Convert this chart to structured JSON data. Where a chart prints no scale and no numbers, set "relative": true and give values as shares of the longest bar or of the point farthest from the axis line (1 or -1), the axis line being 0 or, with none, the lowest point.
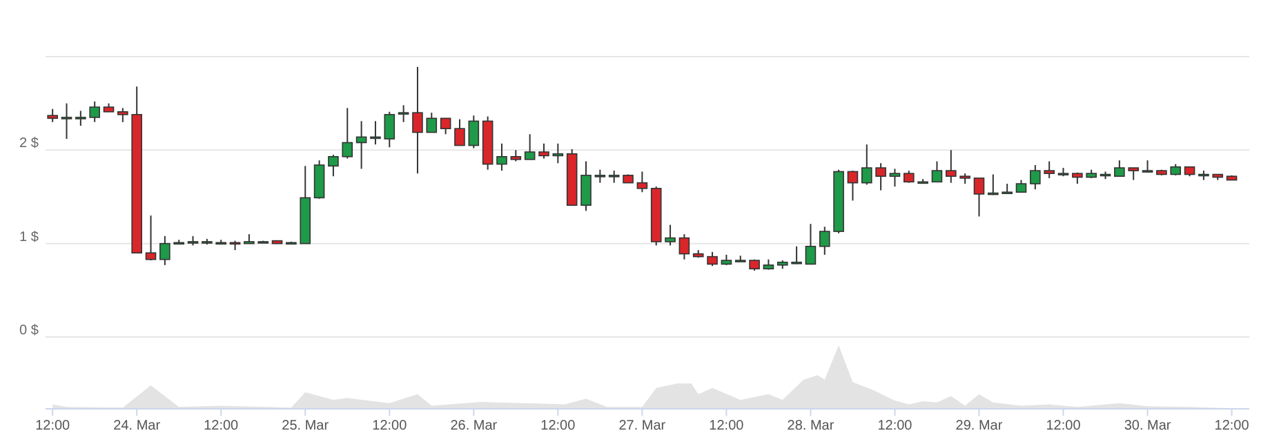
{
  "chart_data": [
    {
      "type": "candlestick",
      "ylim": [
        0,
        3
      ],
      "yticks": [
        {
          "value": 0,
          "label": "0 $"
        },
        {
          "value": 1,
          "label": "1 $"
        },
        {
          "value": 2,
          "label": "2 $"
        },
        {
          "value": 3,
          "label": null
        }
      ],
      "grid": "y",
      "tick_labels": "y",
      "xlim": [
        "--03-23T11:00",
        "--03-30T14:30"
      ],
      "x": [
        "--03-23T12:00",
        "--03-23T14:00",
        "--03-23T16:00",
        "--03-23T18:00",
        "--03-23T20:00",
        "--03-23T22:00",
        "--03-24T00:00",
        "--03-24T02:00",
        "--03-24T04:00",
        "--03-24T06:00",
        "--03-24T08:00",
        "--03-24T10:00",
        "--03-24T12:00",
        "--03-24T14:00",
        "--03-24T16:00",
        "--03-24T18:00",
        "--03-24T20:00",
        "--03-24T22:00",
        "--03-25T00:00",
        "--03-25T02:00",
        "--03-25T04:00",
        "--03-25T06:00",
        "--03-25T08:00",
        "--03-25T10:00",
        "--03-25T12:00",
        "--03-25T14:00",
        "--03-25T16:00",
        "--03-25T18:00",
        "--03-25T20:00",
        "--03-25T22:00",
        "--03-26T00:00",
        "--03-26T02:00",
        "--03-26T04:00",
        "--03-26T06:00",
        "--03-26T08:00",
        "--03-26T10:00",
        "--03-26T12:00",
        "--03-26T14:00",
        "--03-26T16:00",
        "--03-26T18:00",
        "--03-26T20:00",
        "--03-26T22:00",
        "--03-27T00:00",
        "--03-27T02:00",
        "--03-27T04:00",
        "--03-27T06:00",
        "--03-27T08:00",
        "--03-27T10:00",
        "--03-27T12:00",
        "--03-27T14:00",
        "--03-27T16:00",
        "--03-27T18:00",
        "--03-27T20:00",
        "--03-27T22:00",
        "--03-28T00:00",
        "--03-28T02:00",
        "--03-28T04:00",
        "--03-28T06:00",
        "--03-28T08:00",
        "--03-28T10:00",
        "--03-28T12:00",
        "--03-28T14:00",
        "--03-28T16:00",
        "--03-28T18:00",
        "--03-28T20:00",
        "--03-28T22:00",
        "--03-29T00:00",
        "--03-29T02:00",
        "--03-29T04:00",
        "--03-29T06:00",
        "--03-29T08:00",
        "--03-29T10:00",
        "--03-29T12:00",
        "--03-29T14:00",
        "--03-29T16:00",
        "--03-29T18:00",
        "--03-29T20:00",
        "--03-29T22:00",
        "--03-30T00:00",
        "--03-30T02:00",
        "--03-30T04:00",
        "--03-30T06:00",
        "--03-30T08:00",
        "--03-30T10:00",
        "--03-30T12:00"
      ],
      "ohlc": [
        [
          2.37,
          2.44,
          2.3,
          2.34
        ],
        [
          2.35,
          2.5,
          2.12,
          2.35
        ],
        [
          2.35,
          2.42,
          2.26,
          2.35
        ],
        [
          2.35,
          2.52,
          2.3,
          2.46
        ],
        [
          2.46,
          2.5,
          2.41,
          2.41
        ],
        [
          2.41,
          2.45,
          2.3,
          2.38
        ],
        [
          2.38,
          2.68,
          0.9,
          0.9
        ],
        [
          0.9,
          1.3,
          0.82,
          0.83
        ],
        [
          0.83,
          1.08,
          0.77,
          1.0
        ],
        [
          1.0,
          1.04,
          0.99,
          1.01
        ],
        [
          1.01,
          1.08,
          0.98,
          1.02
        ],
        [
          1.02,
          1.05,
          0.99,
          1.02
        ],
        [
          1.01,
          1.04,
          1.0,
          1.01
        ],
        [
          1.01,
          1.03,
          0.93,
          1.0
        ],
        [
          1.0,
          1.1,
          1.0,
          1.02
        ],
        [
          1.02,
          1.03,
          1.01,
          1.02
        ],
        [
          1.03,
          1.03,
          1.0,
          1.0
        ],
        [
          1.0,
          1.02,
          0.99,
          1.01
        ],
        [
          1.0,
          1.83,
          1.0,
          1.49
        ],
        [
          1.49,
          1.89,
          1.48,
          1.84
        ],
        [
          1.83,
          1.95,
          1.72,
          1.93
        ],
        [
          1.93,
          2.45,
          1.91,
          2.08
        ],
        [
          2.08,
          2.31,
          1.8,
          2.14
        ],
        [
          2.13,
          2.31,
          2.06,
          2.14
        ],
        [
          2.12,
          2.41,
          2.03,
          2.38
        ],
        [
          2.39,
          2.48,
          2.3,
          2.4
        ],
        [
          2.4,
          2.89,
          1.75,
          2.19
        ],
        [
          2.19,
          2.4,
          2.19,
          2.34
        ],
        [
          2.34,
          2.34,
          2.17,
          2.23
        ],
        [
          2.23,
          2.33,
          2.05,
          2.05
        ],
        [
          2.05,
          2.37,
          2.02,
          2.31
        ],
        [
          2.31,
          2.36,
          1.79,
          1.85
        ],
        [
          1.85,
          2.07,
          1.78,
          1.93
        ],
        [
          1.93,
          2.0,
          1.88,
          1.9
        ],
        [
          1.9,
          2.17,
          1.9,
          1.98
        ],
        [
          1.98,
          2.07,
          1.91,
          1.94
        ],
        [
          1.94,
          2.07,
          1.86,
          1.96
        ],
        [
          1.96,
          2.01,
          1.41,
          1.41
        ],
        [
          1.41,
          1.88,
          1.35,
          1.73
        ],
        [
          1.73,
          1.79,
          1.65,
          1.73
        ],
        [
          1.73,
          1.78,
          1.65,
          1.73
        ],
        [
          1.73,
          1.74,
          1.65,
          1.65
        ],
        [
          1.65,
          1.77,
          1.55,
          1.59
        ],
        [
          1.59,
          1.61,
          0.98,
          1.02
        ],
        [
          1.02,
          1.2,
          0.98,
          1.06
        ],
        [
          1.06,
          1.1,
          0.83,
          0.89
        ],
        [
          0.89,
          0.93,
          0.85,
          0.86
        ],
        [
          0.86,
          0.91,
          0.76,
          0.78
        ],
        [
          0.78,
          0.88,
          0.77,
          0.82
        ],
        [
          0.82,
          0.87,
          0.81,
          0.82
        ],
        [
          0.82,
          0.83,
          0.71,
          0.73
        ],
        [
          0.73,
          0.83,
          0.72,
          0.77
        ],
        [
          0.77,
          0.82,
          0.73,
          0.8
        ],
        [
          0.8,
          0.97,
          0.78,
          0.8
        ],
        [
          0.78,
          1.21,
          0.78,
          0.97
        ],
        [
          0.97,
          1.18,
          0.88,
          1.13
        ],
        [
          1.13,
          1.79,
          1.11,
          1.77
        ],
        [
          1.77,
          1.78,
          1.46,
          1.65
        ],
        [
          1.65,
          2.06,
          1.63,
          1.81
        ],
        [
          1.81,
          1.86,
          1.57,
          1.72
        ],
        [
          1.72,
          1.8,
          1.61,
          1.75
        ],
        [
          1.75,
          1.78,
          1.65,
          1.66
        ],
        [
          1.66,
          1.69,
          1.64,
          1.66
        ],
        [
          1.66,
          1.88,
          1.66,
          1.78
        ],
        [
          1.78,
          2.0,
          1.65,
          1.72
        ],
        [
          1.72,
          1.75,
          1.64,
          1.7
        ],
        [
          1.7,
          1.7,
          1.29,
          1.53
        ],
        [
          1.53,
          1.74,
          1.52,
          1.54
        ],
        [
          1.54,
          1.64,
          1.54,
          1.55
        ],
        [
          1.55,
          1.68,
          1.55,
          1.64
        ],
        [
          1.64,
          1.84,
          1.58,
          1.78
        ],
        [
          1.78,
          1.88,
          1.7,
          1.75
        ],
        [
          1.75,
          1.81,
          1.72,
          1.75
        ],
        [
          1.75,
          1.76,
          1.64,
          1.71
        ],
        [
          1.71,
          1.79,
          1.7,
          1.75
        ],
        [
          1.74,
          1.77,
          1.69,
          1.74
        ],
        [
          1.72,
          1.89,
          1.72,
          1.81
        ],
        [
          1.81,
          1.81,
          1.68,
          1.78
        ],
        [
          1.78,
          1.89,
          1.76,
          1.78
        ],
        [
          1.78,
          1.79,
          1.73,
          1.74
        ],
        [
          1.74,
          1.85,
          1.73,
          1.82
        ],
        [
          1.82,
          1.82,
          1.72,
          1.74
        ],
        [
          1.74,
          1.78,
          1.68,
          1.74
        ],
        [
          1.74,
          1.74,
          1.68,
          1.71
        ],
        [
          1.72,
          1.73,
          1.68,
          1.68
        ]
      ],
      "colors": [
        "#d9262a",
        "#1f9a48",
        "#1f9a48",
        "#1f9a48",
        "#d9262a",
        "#d9262a",
        "#d9262a",
        "#d9262a",
        "#1f9a48",
        "#1f9a48",
        "#1f9a48",
        "#1f9a48",
        "#1f9a48",
        "#d9262a",
        "#1f9a48",
        "#1f9a48",
        "#d9262a",
        "#1f9a48",
        "#1f9a48",
        "#1f9a48",
        "#1f9a48",
        "#1f9a48",
        "#1f9a48",
        "#1f9a48",
        "#1f9a48",
        "#1f9a48",
        "#d9262a",
        "#1f9a48",
        "#d9262a",
        "#d9262a",
        "#1f9a48",
        "#d9262a",
        "#1f9a48",
        "#d9262a",
        "#1f9a48",
        "#d9262a",
        "#1f9a48",
        "#d9262a",
        "#1f9a48",
        "#1f9a48",
        "#1f9a48",
        "#d9262a",
        "#d9262a",
        "#d9262a",
        "#1f9a48",
        "#d9262a",
        "#d9262a",
        "#d9262a",
        "#1f9a48",
        "#1f9a48",
        "#d9262a",
        "#1f9a48",
        "#1f9a48",
        "#1f9a48",
        "#1f9a48",
        "#1f9a48",
        "#1f9a48",
        "#d9262a",
        "#1f9a48",
        "#d9262a",
        "#1f9a48",
        "#d9262a",
        "#1f9a48",
        "#1f9a48",
        "#d9262a",
        "#d9262a",
        "#d9262a",
        "#1f9a48",
        "#1f9a48",
        "#1f9a48",
        "#1f9a48",
        "#d9262a",
        "#1f9a48",
        "#d9262a",
        "#1f9a48",
        "#1f9a48",
        "#1f9a48",
        "#d9262a",
        "#1f9a48",
        "#d9262a",
        "#1f9a48",
        "#d9262a",
        "#1f9a48",
        "#d9262a",
        "#d9262a"
      ]
    },
    {
      "type": "area",
      "relative": true,
      "color": "#e3e3e3",
      "xlim": [
        "--03-23T11:00",
        "--03-30T14:30"
      ],
      "xticks": [
        {
          "value": "--03-23T12:00",
          "label": "12:00"
        },
        {
          "value": "--03-24T00:00",
          "label": "24. Mar"
        },
        {
          "value": "--03-24T12:00",
          "label": "12:00"
        },
        {
          "value": "--03-25T00:00",
          "label": "25. Mar"
        },
        {
          "value": "--03-25T12:00",
          "label": "12:00"
        },
        {
          "value": "--03-26T00:00",
          "label": "26. Mar"
        },
        {
          "value": "--03-26T12:00",
          "label": "12:00"
        },
        {
          "value": "--03-27T00:00",
          "label": "27. Mar"
        },
        {
          "value": "--03-27T12:00",
          "label": "12:00"
        },
        {
          "value": "--03-28T00:00",
          "label": "28. Mar"
        },
        {
          "value": "--03-28T12:00",
          "label": "12:00"
        },
        {
          "value": "--03-29T00:00",
          "label": "29. Mar"
        },
        {
          "value": "--03-29T12:00",
          "label": "12:00"
        },
        {
          "value": "--03-30T00:00",
          "label": "30. Mar"
        },
        {
          "value": "--03-30T12:00",
          "label": "12:00"
        }
      ],
      "x": [
        "--03-23T12:00",
        "--03-23T14:00",
        "--03-23T22:00",
        "--03-24T02:00",
        "--03-24T06:00",
        "--03-24T12:00",
        "--03-24T22:00",
        "--03-25T00:00",
        "--03-25T04:00",
        "--03-25T06:00",
        "--03-25T12:00",
        "--03-25T16:00",
        "--03-25T18:00",
        "--03-26T01:00",
        "--03-26T13:00",
        "--03-26T16:00",
        "--03-26T19:00",
        "--03-27T00:00",
        "--03-27T02:00",
        "--03-27T05:00",
        "--03-27T07:00",
        "--03-27T08:00",
        "--03-27T10:00",
        "--03-27T14:00",
        "--03-27T18:00",
        "--03-27T20:00",
        "--03-27T23:00",
        "--03-28T01:00",
        "--03-28T02:00",
        "--03-28T04:00",
        "--03-28T06:00",
        "--03-28T09:00",
        "--03-28T12:00",
        "--03-28T14:00",
        "--03-28T16:00",
        "--03-28T18:00",
        "--03-28T20:00",
        "--03-28T22:00",
        "--03-29T00:00",
        "--03-29T02:00",
        "--03-29T06:00",
        "--03-29T10:00",
        "--03-29T14:00",
        "--03-29T20:00",
        "--03-30T00:00",
        "--03-30T06:00",
        "--03-30T12:00"
      ],
      "values": [
        0.07,
        0.03,
        0.02,
        0.37,
        0.03,
        0.05,
        0.02,
        0.26,
        0.14,
        0.17,
        0.09,
        0.23,
        0.05,
        0.11,
        0.07,
        0.16,
        0.03,
        0.03,
        0.33,
        0.4,
        0.4,
        0.23,
        0.33,
        0.14,
        0.23,
        0.14,
        0.46,
        0.53,
        0.46,
        1,
        0.42,
        0.29,
        0.13,
        0.07,
        0.12,
        0.1,
        0.2,
        0.05,
        0.23,
        0.1,
        0.05,
        0.07,
        0.03,
        0.09,
        0.04,
        0.03,
        0.01
      ]
    }
  ]
}
